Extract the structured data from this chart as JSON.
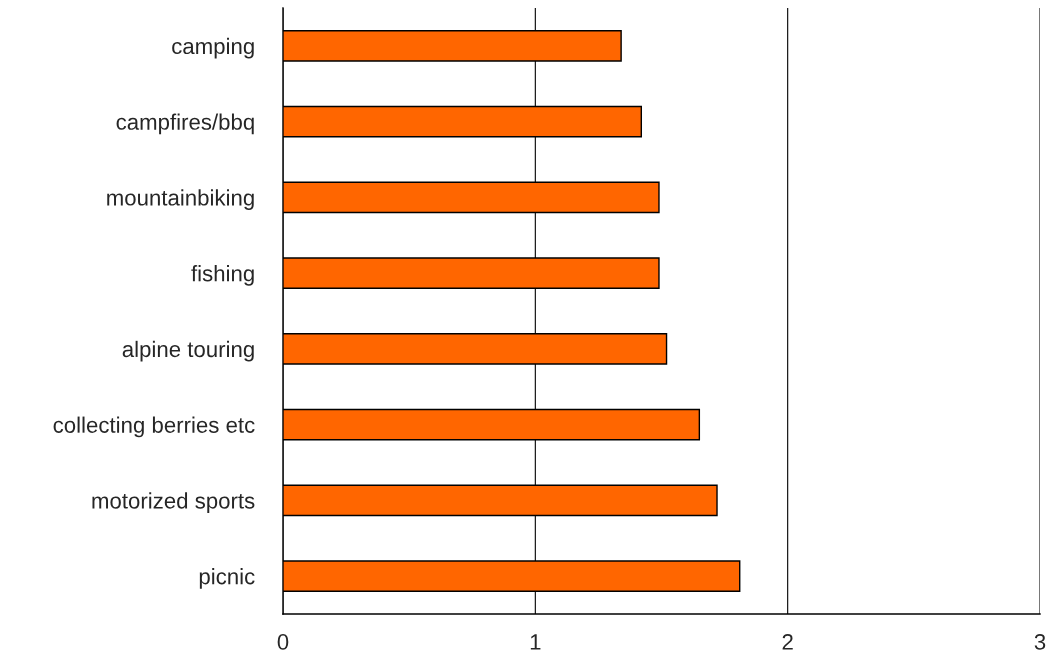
{
  "chart_data": {
    "type": "bar",
    "orientation": "horizontal",
    "categories": [
      "camping",
      "campfires/bbq",
      "mountainbiking",
      "fishing",
      "alpine touring",
      "collecting berries etc",
      "motorized sports",
      "picnic"
    ],
    "values": [
      1.34,
      1.42,
      1.49,
      1.49,
      1.52,
      1.65,
      1.72,
      1.81
    ],
    "color": "#ff6600",
    "xlim": [
      0,
      3
    ],
    "xticks": [
      0,
      1,
      2,
      3
    ],
    "grid": "x"
  }
}
